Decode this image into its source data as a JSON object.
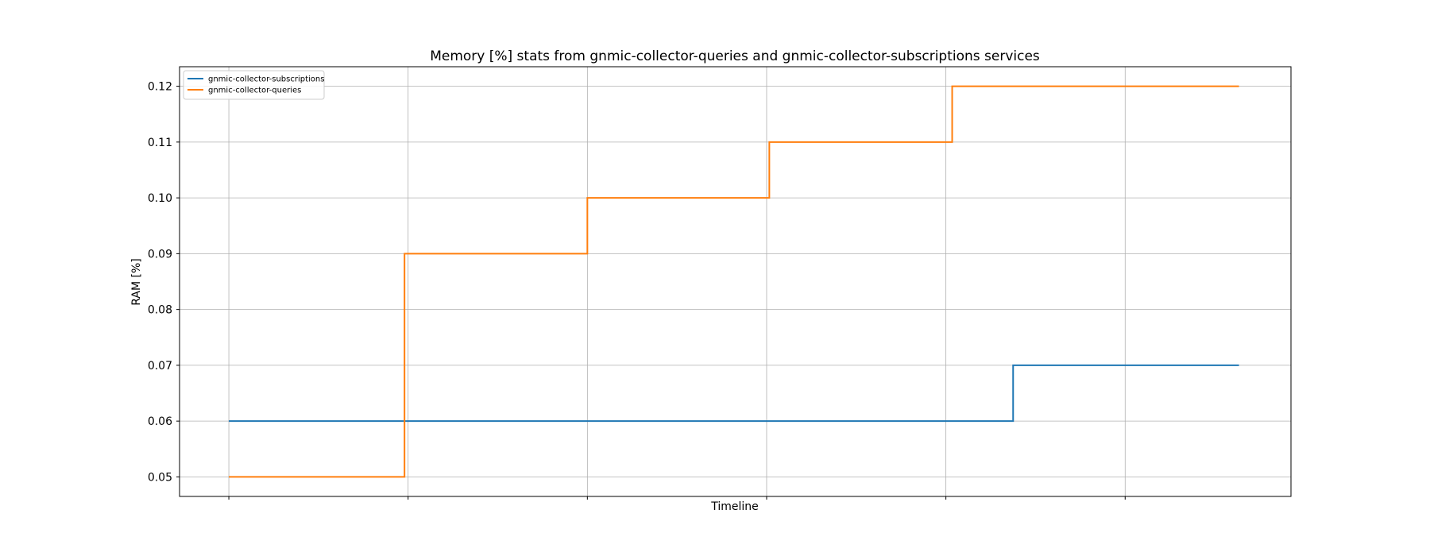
{
  "chart_data": {
    "type": "line",
    "title": "Memory [%] stats from gnmic-collector-queries and gnmic-collector-subscriptions services",
    "xlabel": "Timeline",
    "ylabel": "RAM [%]",
    "ylim": [
      0.0465,
      0.1235
    ],
    "yticks": [
      "0.05",
      "0.06",
      "0.07",
      "0.08",
      "0.09",
      "0.10",
      "0.11",
      "0.12"
    ],
    "xlim": [
      -0.55,
      11.85
    ],
    "xticks": [
      0,
      2,
      4,
      6,
      8,
      10
    ],
    "xtick_labels_shown": false,
    "grid": true,
    "legend": "top-left",
    "series": [
      {
        "name": "gnmic-collector-subscriptions",
        "color": "#1f77b4",
        "step": "post",
        "x": [
          0,
          8.75,
          11.27
        ],
        "values": [
          0.06,
          0.07,
          0.07
        ]
      },
      {
        "name": "gnmic-collector-queries",
        "color": "#ff7f0e",
        "step": "post",
        "x": [
          0,
          1.96,
          4.0,
          6.03,
          8.07,
          11.27
        ],
        "values": [
          0.05,
          0.09,
          0.1,
          0.11,
          0.12,
          0.12
        ]
      }
    ]
  }
}
